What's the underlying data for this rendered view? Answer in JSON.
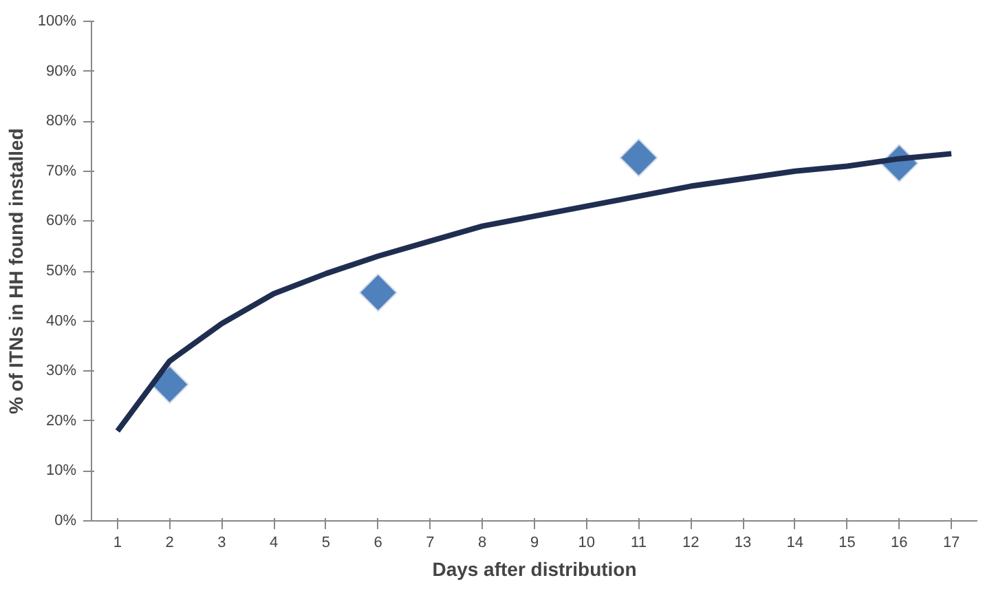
{
  "chart_data": {
    "type": "line",
    "xlabel": "Days after distribution",
    "ylabel": "% of ITNs in HH found installed",
    "x": [
      1,
      2,
      3,
      4,
      5,
      6,
      7,
      8,
      9,
      10,
      11,
      12,
      13,
      14,
      15,
      16,
      17
    ],
    "series": [
      {
        "color": "#1f2e50",
        "marker": "none",
        "line_style": "solid",
        "values": [
          18,
          32,
          39.5,
          45.5,
          49.5,
          53,
          56,
          59,
          61,
          63,
          65,
          67,
          68.5,
          70,
          71,
          72.5,
          73.5
        ]
      },
      {
        "type": "scatter",
        "color": "#4f81bd",
        "marker": "diamond",
        "x": [
          2,
          6,
          11,
          16
        ],
        "values": [
          27.3,
          45.7,
          72.7,
          71.6
        ]
      }
    ],
    "xlim": [
      0.5,
      17.5
    ],
    "xticks": [
      1,
      2,
      3,
      4,
      5,
      6,
      7,
      8,
      9,
      10,
      11,
      12,
      13,
      14,
      15,
      16,
      17
    ],
    "ylim": [
      0,
      100
    ],
    "yticks": [
      {
        "value": 0,
        "label": "0%"
      },
      {
        "value": 10,
        "label": "10%"
      },
      {
        "value": 20,
        "label": "20%"
      },
      {
        "value": 30,
        "label": "30%"
      },
      {
        "value": 40,
        "label": "40%"
      },
      {
        "value": 50,
        "label": "50%"
      },
      {
        "value": 60,
        "label": "60%"
      },
      {
        "value": 70,
        "label": "70%"
      },
      {
        "value": 80,
        "label": "80%"
      },
      {
        "value": 90,
        "label": "90%"
      },
      {
        "value": 100,
        "label": "100%"
      }
    ],
    "grid": false
  }
}
